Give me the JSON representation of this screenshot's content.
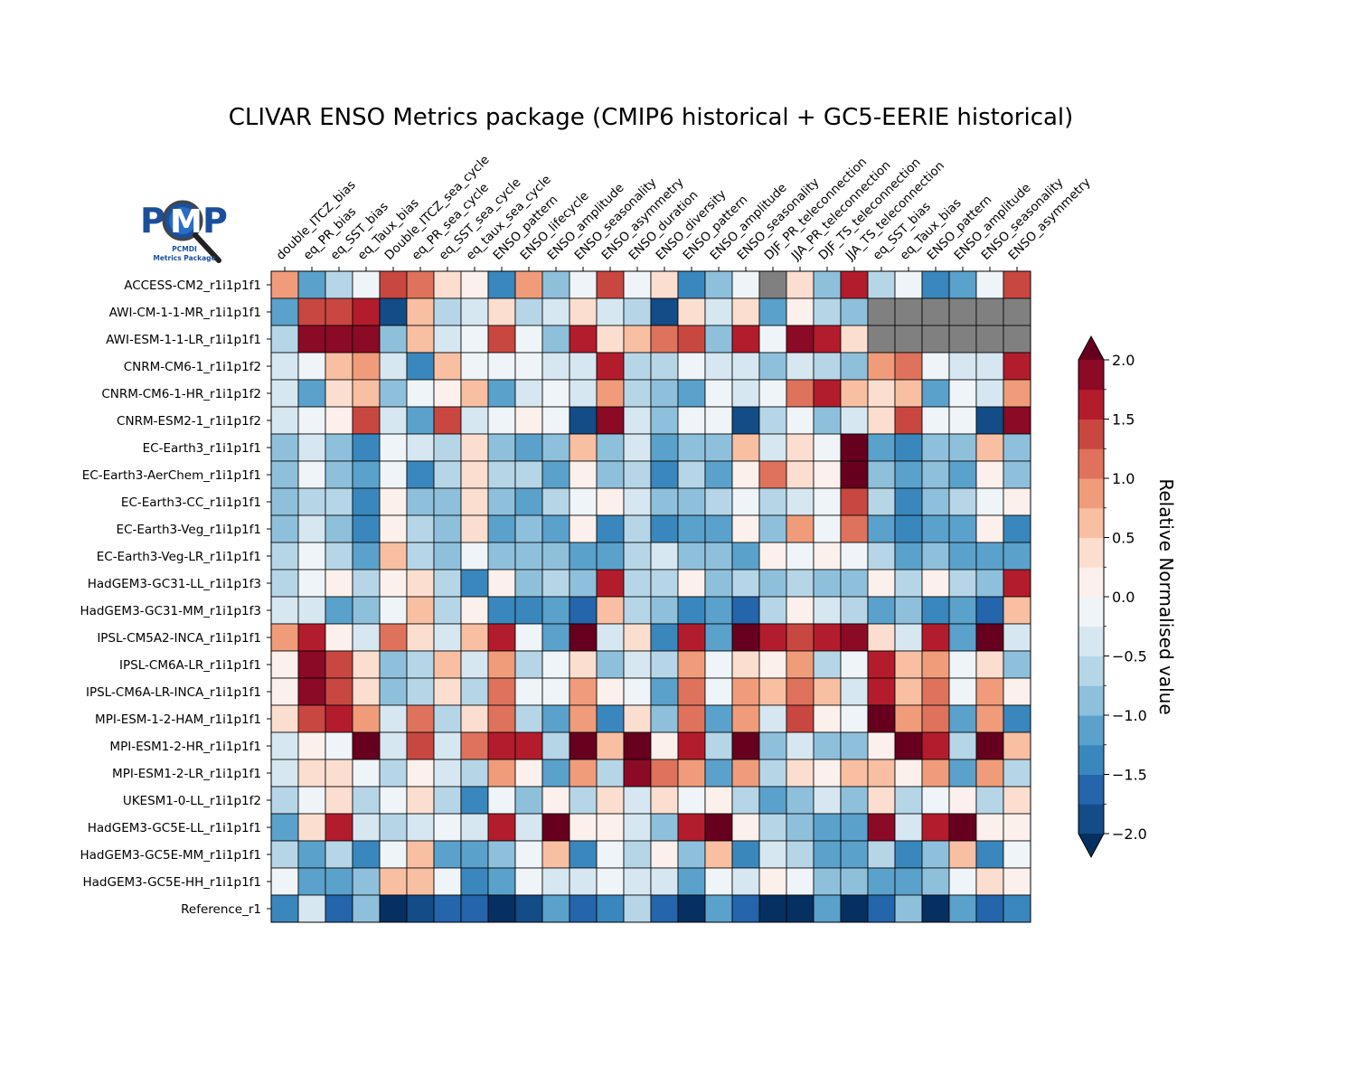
{
  "chart_data": {
    "type": "heatmap",
    "title": "CLIVAR ENSO Metrics package (CMIP6 historical + GC5-EERIE historical)",
    "logo_text": [
      "PCMDI",
      "Metrics Package"
    ],
    "colorbar_label": "Relative Normalised value",
    "colorbar_range": [
      -2.0,
      2.0
    ],
    "colorbar_ticks": [
      "−2.0",
      "−1.5",
      "−1.0",
      "−0.5",
      "0.0",
      "0.5",
      "1.0",
      "1.5",
      "2.0"
    ],
    "colorbar_tick_values": [
      -2.0,
      -1.5,
      -1.0,
      -0.5,
      0.0,
      0.5,
      1.0,
      1.5,
      2.0
    ],
    "colorbar_extend": "both",
    "colormap": [
      "#053061",
      "#134c87",
      "#2465ab",
      "#3a87bd",
      "#5aa1cb",
      "#8ec0dc",
      "#b6d6e8",
      "#d6e7f1",
      "#eef4f8",
      "#fbf0eb",
      "#fbdecf",
      "#f8bfa3",
      "#f09c7b",
      "#de725c",
      "#c94741",
      "#b31c2c",
      "#8b0a26",
      "#67001f"
    ],
    "missing_color": "#808080",
    "columns": [
      "double_ITCZ_bias",
      "eq_PR_bias",
      "eq_SST_bias",
      "eq_Taux_bias",
      "Double_ITCZ_sea_cycle",
      "eq_PR_sea_cycle",
      "eq_SST_sea_cycle",
      "eq_taux_sea_cycle",
      "ENSO_pattern",
      "ENSO_lifecycle",
      "ENSO_amplitude",
      "ENSO_seasonality",
      "ENSO_asymmetry",
      "ENSO_duration",
      "ENSO_diversity",
      "ENSO_pattern",
      "ENSO_amplitude",
      "ENSO_seasonality",
      "DJF_PR_teleconnection",
      "JJA_PR_teleconnection",
      "DJF_TS_teleconnection",
      "JJA_TS_teleconnection",
      "eq_SST_bias",
      "eq_Taux_bias",
      "ENSO_pattern",
      "ENSO_amplitude",
      "ENSO_seasonality",
      "ENSO_asymmetry"
    ],
    "rows": [
      "ACCESS-CM2_r1i1p1f1",
      "AWI-CM-1-1-MR_r1i1p1f1",
      "AWI-ESM-1-1-LR_r1i1p1f1",
      "CNRM-CM6-1_r1i1p1f2",
      "CNRM-CM6-1-HR_r1i1p1f2",
      "CNRM-ESM2-1_r1i1p1f2",
      "EC-Earth3_r1i1p1f1",
      "EC-Earth3-AerChem_r1i1p1f1",
      "EC-Earth3-CC_r1i1p1f1",
      "EC-Earth3-Veg_r1i1p1f1",
      "EC-Earth3-Veg-LR_r1i1p1f1",
      "HadGEM3-GC31-LL_r1i1p1f3",
      "HadGEM3-GC31-MM_r1i1p1f3",
      "IPSL-CM5A2-INCA_r1i1p1f1",
      "IPSL-CM6A-LR_r1i1p1f1",
      "IPSL-CM6A-LR-INCA_r1i1p1f1",
      "MPI-ESM-1-2-HAM_r1i1p1f1",
      "MPI-ESM1-2-HR_r1i1p1f1",
      "MPI-ESM1-2-LR_r1i1p1f1",
      "UKESM1-0-LL_r1i1p1f2",
      "HadGEM3-GC5E-LL_r1i1p1f1",
      "HadGEM3-GC5E-MM_r1i1p1f1",
      "HadGEM3-GC5E-HH_r1i1p1f1",
      "Reference_r1"
    ],
    "values": [
      [
        0.9,
        -1.1,
        -0.6,
        -0.1,
        1.4,
        1.1,
        0.3,
        0.1,
        -1.4,
        0.9,
        -0.9,
        -0.1,
        1.3,
        -0.1,
        0.4,
        -1.4,
        -0.9,
        -0.1,
        null,
        0.3,
        -0.9,
        1.6,
        -0.6,
        -0.1,
        -1.4,
        -1.1,
        -0.1,
        1.3
      ],
      [
        -1.1,
        1.3,
        1.3,
        1.6,
        -1.9,
        0.7,
        -0.6,
        -0.4,
        0.3,
        -0.6,
        -0.4,
        0.3,
        -0.4,
        -0.6,
        -1.9,
        0.3,
        -0.4,
        0.3,
        -1.1,
        0.1,
        -0.6,
        -0.9,
        null,
        null,
        null,
        null,
        null,
        null
      ],
      [
        -0.6,
        1.9,
        1.9,
        1.9,
        -0.9,
        0.7,
        -0.4,
        -0.1,
        1.3,
        -0.1,
        -0.9,
        1.6,
        0.3,
        0.7,
        1.1,
        1.3,
        -0.9,
        1.6,
        -0.1,
        1.9,
        1.6,
        0.3,
        null,
        null,
        null,
        null,
        null,
        null
      ],
      [
        -0.4,
        -0.1,
        0.7,
        0.9,
        -0.4,
        -1.4,
        0.7,
        -0.1,
        -0.1,
        -0.1,
        -0.4,
        -0.4,
        1.6,
        -0.6,
        -0.6,
        -0.1,
        -0.4,
        -0.4,
        -0.9,
        -0.4,
        -0.6,
        -0.9,
        0.9,
        1.1,
        -0.1,
        -0.4,
        -0.4,
        1.6
      ],
      [
        -0.4,
        -1.1,
        0.3,
        0.7,
        -0.9,
        -0.1,
        0.1,
        0.7,
        -1.1,
        -0.4,
        -0.1,
        -0.4,
        0.9,
        -0.6,
        -0.9,
        -1.1,
        -0.1,
        -0.4,
        -0.1,
        1.1,
        1.6,
        0.7,
        0.3,
        0.7,
        -1.1,
        -0.1,
        -0.4,
        0.9
      ],
      [
        -0.4,
        -0.1,
        0.1,
        1.3,
        -0.4,
        -1.1,
        1.3,
        -0.4,
        -0.1,
        0.1,
        -0.1,
        -1.9,
        1.9,
        -0.4,
        -0.9,
        -0.1,
        -0.1,
        -1.9,
        -0.6,
        -0.1,
        -0.9,
        -0.4,
        0.3,
        1.3,
        -0.1,
        -0.1,
        -1.9,
        1.9
      ],
      [
        -0.9,
        -0.4,
        -0.9,
        -1.4,
        -0.1,
        -0.4,
        -0.6,
        0.3,
        -0.9,
        -1.1,
        -0.9,
        0.7,
        -0.9,
        -0.4,
        -1.1,
        -0.9,
        -0.9,
        0.7,
        -0.4,
        0.3,
        -0.1,
        2.1,
        -1.1,
        -1.4,
        -0.9,
        -0.9,
        0.7,
        -0.9
      ],
      [
        -0.9,
        -0.1,
        -0.9,
        -1.1,
        -0.1,
        -1.4,
        -0.6,
        0.3,
        -0.6,
        -0.6,
        -1.1,
        0.1,
        -0.9,
        -0.6,
        -1.4,
        -0.6,
        -1.1,
        0.1,
        1.1,
        0.3,
        0.1,
        2.1,
        -0.9,
        -1.1,
        -0.9,
        -1.1,
        0.1,
        -0.9
      ],
      [
        -0.9,
        -0.6,
        -0.6,
        -1.4,
        0.1,
        -0.9,
        -0.9,
        0.3,
        -0.9,
        -1.1,
        -0.6,
        -0.1,
        0.1,
        -0.4,
        -0.9,
        -0.9,
        -0.6,
        -0.1,
        -0.6,
        -0.4,
        -0.1,
        1.3,
        -0.6,
        -1.4,
        -0.9,
        -0.6,
        -0.1,
        0.1
      ],
      [
        -0.9,
        -0.4,
        -0.9,
        -1.4,
        0.1,
        -0.6,
        -0.9,
        0.3,
        -1.1,
        -0.9,
        -1.1,
        0.1,
        -1.4,
        -0.6,
        -1.4,
        -1.1,
        -1.1,
        0.1,
        -0.9,
        0.9,
        -0.1,
        1.1,
        -1.1,
        -1.4,
        -1.1,
        -1.1,
        0.1,
        -1.4
      ],
      [
        -0.6,
        -0.1,
        -0.6,
        -1.1,
        0.7,
        -0.6,
        -0.9,
        -0.1,
        -0.9,
        -0.9,
        -0.9,
        -1.1,
        -1.1,
        -0.6,
        -0.4,
        -0.9,
        -0.9,
        -1.1,
        0.1,
        -0.1,
        0.1,
        -0.1,
        -0.6,
        -1.1,
        -0.9,
        -1.1,
        -1.1,
        -1.1
      ],
      [
        -0.6,
        -0.1,
        0.1,
        -0.6,
        0.1,
        0.3,
        -0.6,
        -1.4,
        0.1,
        -0.9,
        -0.6,
        -0.9,
        1.6,
        -0.6,
        -0.6,
        0.1,
        -0.9,
        -0.6,
        -0.9,
        -0.6,
        -0.9,
        -0.9,
        0.1,
        -0.6,
        0.1,
        -0.6,
        -0.9,
        1.6
      ],
      [
        -0.4,
        -0.4,
        -1.1,
        -0.9,
        -0.1,
        0.7,
        -0.6,
        0.1,
        -1.4,
        -1.4,
        -1.1,
        -1.6,
        0.7,
        -0.6,
        -0.9,
        -1.4,
        -1.1,
        -1.6,
        -0.6,
        0.1,
        -0.4,
        -0.6,
        -1.1,
        -0.9,
        -1.4,
        -1.1,
        -1.6,
        0.7
      ],
      [
        0.9,
        1.6,
        0.1,
        -0.4,
        1.1,
        0.3,
        -0.4,
        0.7,
        1.6,
        -0.1,
        -1.1,
        2.1,
        -0.4,
        0.3,
        -1.4,
        1.6,
        -1.1,
        2.1,
        1.6,
        1.3,
        1.6,
        1.9,
        0.3,
        -0.4,
        1.6,
        -1.1,
        2.1,
        -0.4
      ],
      [
        0.1,
        1.9,
        1.3,
        0.3,
        -0.9,
        -0.6,
        0.7,
        -0.4,
        0.9,
        -0.6,
        -0.1,
        0.3,
        -0.9,
        -0.4,
        -0.6,
        0.9,
        -0.1,
        0.3,
        0.1,
        0.9,
        -0.6,
        -0.1,
        1.6,
        0.7,
        0.9,
        -0.1,
        0.3,
        -0.9
      ],
      [
        0.1,
        1.9,
        1.3,
        0.3,
        -0.9,
        -0.6,
        0.3,
        -0.6,
        1.1,
        -0.1,
        -0.1,
        0.9,
        0.1,
        -0.1,
        -1.1,
        1.1,
        -0.1,
        0.9,
        0.7,
        1.1,
        0.7,
        -0.4,
        1.6,
        0.7,
        1.1,
        -0.1,
        0.9,
        0.1
      ],
      [
        0.3,
        1.3,
        1.6,
        0.9,
        -0.4,
        1.1,
        -0.6,
        0.3,
        1.1,
        -0.6,
        -1.1,
        0.9,
        -1.4,
        0.3,
        -0.9,
        1.1,
        -1.1,
        0.9,
        -0.4,
        1.3,
        0.1,
        -0.1,
        2.1,
        0.9,
        1.1,
        -1.1,
        0.9,
        -1.4
      ],
      [
        -0.4,
        0.1,
        -0.1,
        2.1,
        -0.4,
        1.3,
        -0.4,
        1.1,
        1.6,
        1.6,
        -0.6,
        2.1,
        0.7,
        2.1,
        0.1,
        1.6,
        -0.6,
        2.1,
        -0.9,
        -0.4,
        -0.9,
        -0.9,
        0.1,
        2.1,
        1.6,
        -0.6,
        2.1,
        0.7
      ],
      [
        -0.4,
        0.3,
        0.3,
        -0.1,
        -0.6,
        0.1,
        -0.4,
        -0.6,
        0.9,
        0.1,
        -1.1,
        0.9,
        -0.6,
        1.9,
        1.1,
        0.9,
        -1.1,
        0.9,
        -0.6,
        0.3,
        0.1,
        0.7,
        0.7,
        0.1,
        0.9,
        -1.1,
        0.9,
        -0.6
      ],
      [
        -0.6,
        -0.1,
        0.3,
        -0.6,
        -0.1,
        0.3,
        -0.6,
        -1.4,
        -0.1,
        -0.9,
        0.1,
        -0.6,
        0.3,
        -0.4,
        0.3,
        -0.1,
        0.1,
        -0.6,
        -1.1,
        -0.9,
        -0.4,
        -0.9,
        0.3,
        -0.6,
        -0.1,
        0.1,
        -0.6,
        0.3
      ],
      [
        -1.1,
        0.3,
        1.6,
        -0.4,
        -0.6,
        -0.4,
        -0.1,
        -0.4,
        1.6,
        -0.4,
        2.1,
        0.1,
        0.1,
        -0.4,
        -0.9,
        1.6,
        2.1,
        0.1,
        -0.6,
        -0.9,
        -1.1,
        -1.1,
        1.9,
        -0.4,
        1.6,
        2.1,
        0.1,
        0.1
      ],
      [
        -0.6,
        -1.1,
        -0.6,
        -1.4,
        -0.1,
        0.7,
        -1.1,
        -1.1,
        -0.9,
        -0.1,
        0.7,
        -1.4,
        -0.1,
        -0.6,
        0.1,
        -0.9,
        0.7,
        -1.4,
        -0.4,
        -0.6,
        -1.1,
        -1.1,
        -0.6,
        -1.4,
        -0.9,
        0.7,
        -1.4,
        -0.1
      ],
      [
        -0.1,
        -1.1,
        -1.1,
        -0.9,
        0.7,
        0.7,
        -0.1,
        -1.4,
        -1.1,
        -0.1,
        -0.4,
        -0.4,
        -0.1,
        -0.4,
        -0.4,
        -1.1,
        -0.1,
        -0.4,
        0.1,
        -0.1,
        -0.9,
        -0.9,
        -1.1,
        -1.1,
        -0.9,
        -0.1,
        0.3,
        0.1
      ],
      [
        -1.4,
        -0.4,
        -1.6,
        -0.9,
        -2.1,
        -1.9,
        -1.6,
        -1.6,
        -2.1,
        -1.9,
        -1.1,
        -1.6,
        -1.4,
        -0.6,
        -1.6,
        -2.1,
        -1.1,
        -1.6,
        -2.1,
        -2.1,
        -1.1,
        -2.1,
        -1.6,
        -0.9,
        -2.1,
        -1.1,
        -1.6,
        -1.4
      ]
    ]
  }
}
